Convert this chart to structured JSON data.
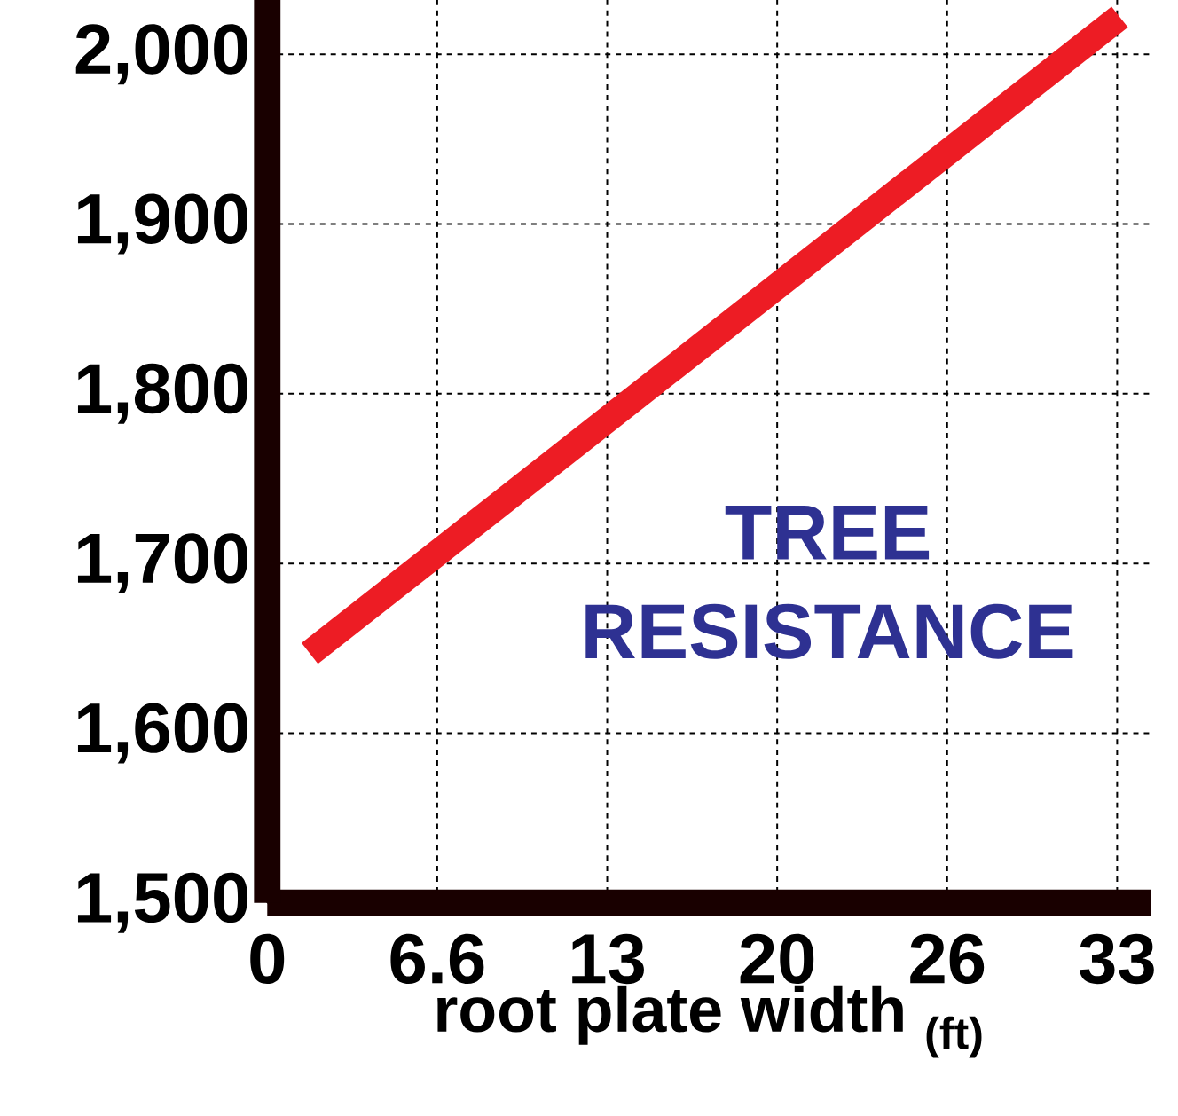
{
  "chart_data": {
    "type": "line",
    "xlabel": "root plate width $_{(ft)}$",
    "annotations": [
      "TREE RESISTANCE"
    ],
    "x": [
      1.65,
      33.1
    ],
    "series": [
      {
        "color": "#ed1c24",
        "values": [
          1647,
          2022
        ]
      }
    ],
    "xlim": [
      0,
      34.3
    ],
    "ylim": [
      1500,
      2032
    ],
    "xticks": [
      0,
      {
        "value": 6.6,
        "label": "6.6"
      },
      {
        "value": 13.2,
        "label": "13"
      },
      {
        "value": 19.8,
        "label": "20"
      },
      {
        "value": 26.4,
        "label": "26"
      },
      33
    ],
    "yticks": [
      {
        "value": 1500,
        "label": "1,500"
      },
      {
        "value": 1600,
        "label": "1,600"
      },
      {
        "value": 1700,
        "label": "1,700"
      },
      {
        "value": 1800,
        "label": "1,800"
      },
      {
        "value": 1900,
        "label": "1,900"
      },
      {
        "value": 2000,
        "label": "2,000"
      }
    ],
    "grid": true,
    "marker": "none"
  }
}
